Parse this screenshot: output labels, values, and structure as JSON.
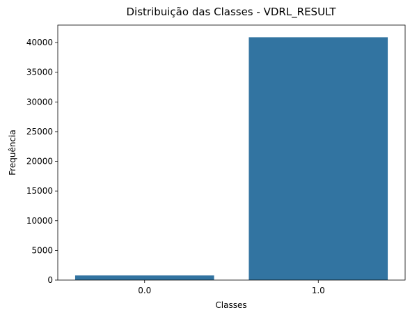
{
  "chart_data": {
    "type": "bar",
    "title": "Distribuição das Classes - VDRL_RESULT",
    "xlabel": "Classes",
    "ylabel": "Frequência",
    "categories": [
      "0.0",
      "1.0"
    ],
    "values": [
      780,
      40900
    ],
    "ylim": [
      0,
      42945
    ],
    "yticks": [
      0,
      5000,
      10000,
      15000,
      20000,
      25000,
      30000,
      35000,
      40000
    ],
    "grid": false,
    "bar_color": "#3274a1"
  }
}
